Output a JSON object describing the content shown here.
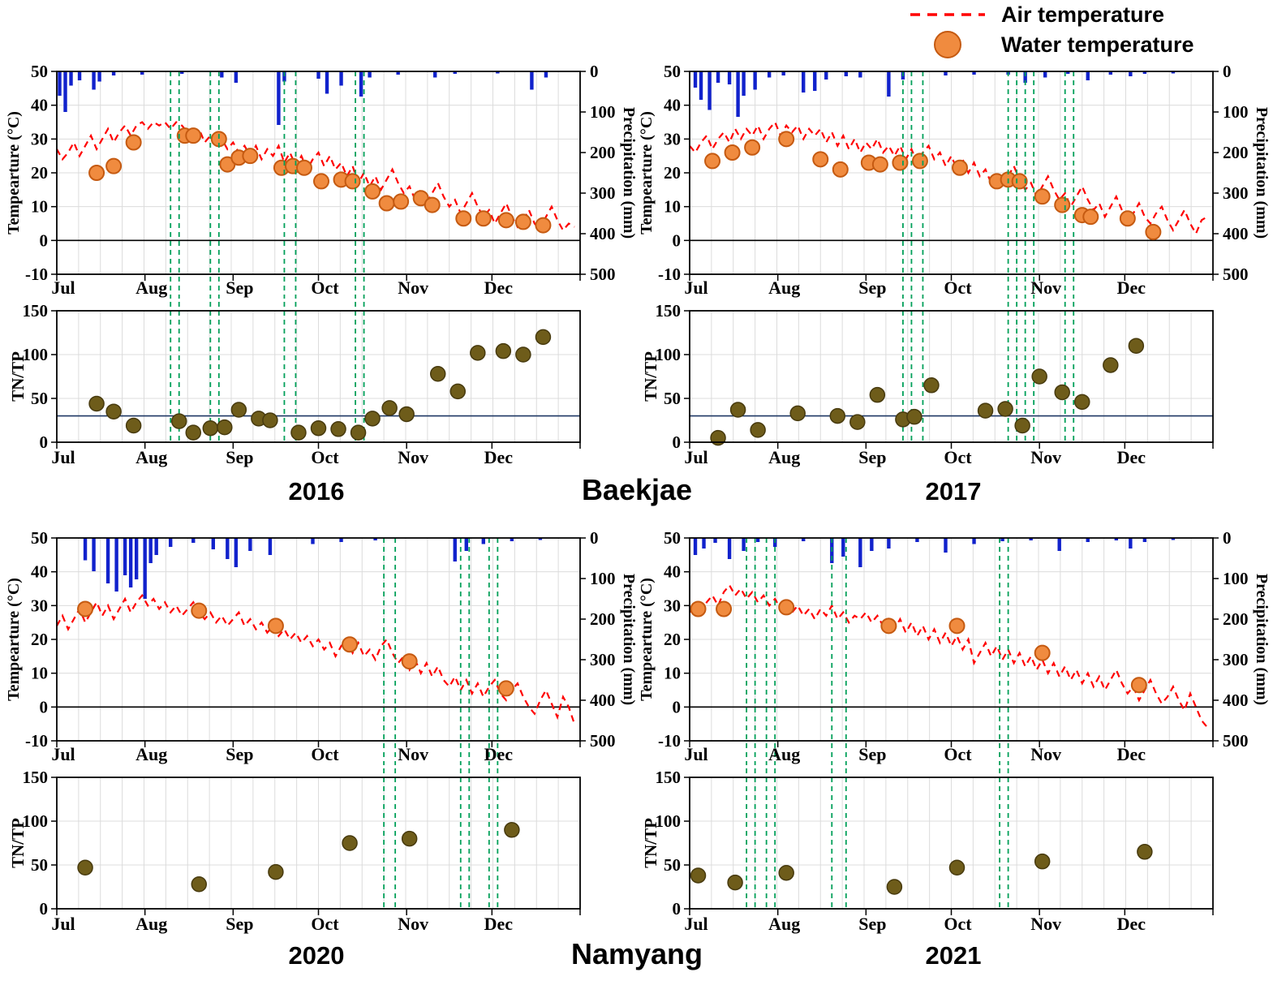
{
  "legend": {
    "air_label": "Air temperature",
    "water_label": "Water temperature"
  },
  "site_labels": {
    "top": "Baekjae",
    "bottom": "Namyang"
  },
  "colors": {
    "air": "#ff0000",
    "water_fill": "#f08b3f",
    "water_stroke": "#c55a11",
    "precip": "#1122cc",
    "event": "#00a05a",
    "tntp_fill": "#6e5c1a",
    "tntp_stroke": "#473a0e",
    "ref_line": "#1f3864",
    "grid": "#dcdcdc",
    "axis": "#000000"
  },
  "axes": {
    "temp_ylabel": "Tempearture (°C)",
    "precip_ylabel": "Precipitation (mm)",
    "tntp_ylabel": "TN/TP",
    "temp_ticks": [
      -10,
      0,
      10,
      20,
      30,
      40,
      50
    ],
    "precip_ticks": [
      0,
      100,
      200,
      300,
      400,
      500
    ],
    "tntp_ticks": [
      0,
      50,
      100,
      150
    ],
    "months": [
      "Jul",
      "Aug",
      "Sep",
      "Oct",
      "Nov",
      "Dec"
    ]
  },
  "chart_data": {
    "type": "multi-panel",
    "description": "Four site-year panels; each has a top subplot (daily air temperature dashed line, biweekly-ish water temperature dots, precipitation bars hanging from top on inverted right axis, green dashed event lines) and a bottom TN/TP scatter subplot.",
    "x_axis": {
      "range_days": [
        0,
        184
      ],
      "month_start_days": [
        0,
        31,
        62,
        92,
        123,
        153
      ]
    },
    "panels": [
      {
        "id": "baekjae-2016",
        "year": "2016",
        "temp": {
          "ylim": [
            -10,
            50
          ],
          "precip_ylim": [
            0,
            500
          ],
          "air_temperature": {
            "x_start_day": 0,
            "x_step_days": 2,
            "values_c": [
              27,
              24,
              26,
              29,
              25,
              28,
              31,
              27,
              30,
              33,
              29,
              32,
              34,
              31,
              34,
              35,
              33,
              35,
              34,
              35,
              33,
              35,
              34,
              32,
              30,
              33,
              29,
              31,
              28,
              30,
              27,
              29,
              26,
              28,
              25,
              28,
              24,
              27,
              25,
              28,
              23,
              26,
              22,
              25,
              21,
              24,
              26,
              22,
              25,
              21,
              23,
              19,
              22,
              17,
              20,
              16,
              19,
              15,
              18,
              21,
              17,
              14,
              16,
              12,
              15,
              11,
              14,
              17,
              13,
              10,
              12,
              8,
              11,
              14,
              10,
              7,
              9,
              5,
              8,
              11,
              7,
              4,
              6,
              9,
              5,
              3,
              7,
              10,
              6,
              3,
              5,
              4
            ]
          },
          "water_temperature": {
            "days": [
              14,
              20,
              27,
              45,
              48,
              57,
              60,
              64,
              68,
              79,
              83,
              87,
              93,
              100,
              104,
              111,
              116,
              121,
              128,
              132,
              143,
              150,
              158,
              164,
              171
            ],
            "values_c": [
              20,
              22,
              29,
              31,
              31,
              30,
              22.5,
              24.5,
              25,
              21.5,
              22,
              21.5,
              17.5,
              18,
              17.5,
              14.5,
              11,
              11.5,
              12.5,
              10.5,
              6.5,
              6.5,
              6,
              5.5,
              4.5
            ]
          },
          "precipitation": {
            "days": [
              1,
              3,
              5,
              8,
              13,
              15,
              20,
              30,
              44,
              58,
              63,
              78,
              80,
              92,
              95,
              100,
              107,
              110,
              120,
              133,
              140,
              155,
              167,
              172
            ],
            "values_mm": [
              60,
              100,
              35,
              22,
              45,
              25,
              10,
              8,
              6,
              15,
              28,
              132,
              25,
              18,
              55,
              35,
              62,
              15,
              8,
              15,
              6,
              5,
              45,
              15
            ]
          },
          "event_line_days": [
            40,
            43,
            54,
            57,
            80,
            84,
            105,
            108
          ]
        },
        "tntp": {
          "ylim": [
            0,
            150
          ],
          "days": [
            14,
            20,
            27,
            43,
            48,
            54,
            59,
            64,
            71,
            75,
            85,
            92,
            99,
            106,
            111,
            117,
            123,
            134,
            141,
            148,
            157,
            164,
            171
          ],
          "values": [
            44,
            35,
            19,
            24,
            11,
            16,
            17,
            37,
            27,
            25,
            11,
            16,
            15,
            11,
            27,
            39,
            32,
            78,
            58,
            102,
            104,
            100,
            120
          ],
          "ref_line": 30
        }
      },
      {
        "id": "baekjae-2017",
        "year": "2017",
        "temp": {
          "ylim": [
            -10,
            50
          ],
          "precip_ylim": [
            0,
            500
          ],
          "air_temperature": {
            "x_start_day": 0,
            "x_step_days": 2,
            "values_c": [
              28,
              26,
              29,
              31,
              27,
              30,
              32,
              29,
              33,
              30,
              33,
              31,
              34,
              30,
              33,
              35,
              31,
              34,
              32,
              34,
              30,
              33,
              31,
              33,
              29,
              32,
              28,
              31,
              27,
              30,
              26,
              29,
              27,
              30,
              26,
              28,
              25,
              28,
              24,
              27,
              23,
              26,
              28,
              24,
              26,
              22,
              25,
              21,
              24,
              20,
              23,
              19,
              21,
              17,
              20,
              16,
              19,
              22,
              18,
              15,
              17,
              13,
              16,
              19,
              15,
              12,
              14,
              10,
              13,
              16,
              12,
              9,
              11,
              7,
              10,
              13,
              9,
              6,
              8,
              11,
              7,
              5,
              8,
              10,
              6,
              3,
              6,
              9,
              5,
              2,
              6,
              7
            ]
          },
          "water_temperature": {
            "days": [
              8,
              15,
              22,
              34,
              46,
              53,
              63,
              67,
              74,
              81,
              95,
              108,
              112,
              116,
              124,
              131,
              138,
              141,
              154,
              163
            ],
            "values_c": [
              23.5,
              26,
              27.5,
              30,
              24,
              21,
              23,
              22.5,
              23,
              23.5,
              21.5,
              17.5,
              18,
              17.5,
              13,
              10.5,
              7.5,
              7,
              6.5,
              2.5
            ]
          },
          "precipitation": {
            "days": [
              2,
              4,
              7,
              10,
              14,
              17,
              19,
              23,
              28,
              33,
              40,
              44,
              48,
              55,
              60,
              70,
              75,
              90,
              100,
              112,
              118,
              125,
              133,
              140,
              148,
              155,
              160,
              170
            ],
            "values_mm": [
              40,
              70,
              95,
              28,
              32,
              112,
              60,
              45,
              15,
              10,
              52,
              48,
              20,
              12,
              15,
              62,
              20,
              10,
              8,
              8,
              28,
              15,
              6,
              22,
              8,
              12,
              6,
              5
            ]
          },
          "event_line_days": [
            75,
            78,
            82,
            112,
            115,
            118,
            121,
            132,
            135
          ]
        },
        "tntp": {
          "ylim": [
            0,
            150
          ],
          "days": [
            10,
            17,
            24,
            38,
            52,
            59,
            66,
            75,
            79,
            85,
            104,
            111,
            117,
            123,
            131,
            138,
            148,
            157
          ],
          "values": [
            5,
            37,
            14,
            33,
            30,
            23,
            54,
            26,
            29,
            65,
            36,
            38,
            19,
            75,
            57,
            46,
            88,
            110
          ],
          "ref_line": 30
        }
      },
      {
        "id": "namyang-2020",
        "year": "2020",
        "temp": {
          "ylim": [
            -10,
            50
          ],
          "precip_ylim": [
            0,
            500
          ],
          "air_temperature": {
            "x_start_day": 0,
            "x_step_days": 2,
            "values_c": [
              24,
              27,
              23,
              26,
              29,
              25,
              28,
              31,
              27,
              30,
              26,
              29,
              32,
              28,
              31,
              33,
              30,
              32,
              29,
              31,
              28,
              30,
              27,
              29,
              31,
              28,
              26,
              28,
              25,
              27,
              24,
              26,
              28,
              24,
              26,
              23,
              25,
              22,
              24,
              21,
              23,
              20,
              22,
              19,
              21,
              18,
              20,
              17,
              19,
              15,
              18,
              20,
              16,
              19,
              15,
              17,
              14,
              18,
              20,
              16,
              13,
              15,
              11,
              14,
              10,
              13,
              9,
              12,
              8,
              6,
              9,
              5,
              8,
              4,
              7,
              3,
              6,
              8,
              4,
              2,
              5,
              7,
              3,
              0,
              -2,
              2,
              5,
              1,
              -3,
              3,
              0,
              -5
            ]
          },
          "water_temperature": {
            "days": [
              10,
              50,
              77,
              103,
              124,
              158
            ],
            "values_c": [
              29,
              28.5,
              24,
              18.5,
              13.5,
              5.5
            ]
          },
          "precipitation": {
            "days": [
              10,
              13,
              18,
              21,
              24,
              26,
              28,
              31,
              33,
              35,
              40,
              48,
              55,
              60,
              63,
              68,
              75,
              90,
              100,
              112,
              140,
              144,
              150,
              160,
              170
            ],
            "values_mm": [
              55,
              82,
              112,
              132,
              92,
              122,
              102,
              150,
              62,
              42,
              22,
              12,
              28,
              52,
              72,
              32,
              42,
              15,
              10,
              6,
              58,
              32,
              15,
              8,
              5
            ]
          },
          "event_line_days": [
            115,
            119,
            142,
            145,
            152,
            155
          ]
        },
        "tntp": {
          "ylim": [
            0,
            150
          ],
          "days": [
            10,
            50,
            77,
            103,
            124,
            160
          ],
          "values": [
            47,
            28,
            42,
            75,
            80,
            90
          ],
          "ref_line": null
        }
      },
      {
        "id": "namyang-2021",
        "year": "2021",
        "temp": {
          "ylim": [
            -10,
            50
          ],
          "precip_ylim": [
            0,
            500
          ],
          "air_temperature": {
            "x_start_day": 0,
            "x_step_days": 2,
            "values_c": [
              28,
              30,
              27,
              31,
              33,
              30,
              34,
              36,
              33,
              35,
              32,
              34,
              31,
              33,
              30,
              32,
              29,
              31,
              28,
              30,
              27,
              29,
              26,
              29,
              27,
              30,
              26,
              28,
              25,
              27,
              26,
              28,
              25,
              27,
              24,
              26,
              23,
              26,
              22,
              25,
              21,
              24,
              20,
              23,
              19,
              22,
              18,
              21,
              17,
              20,
              13,
              16,
              19,
              15,
              18,
              14,
              17,
              13,
              16,
              12,
              15,
              11,
              14,
              10,
              13,
              9,
              12,
              8,
              11,
              7,
              10,
              6,
              9,
              5,
              8,
              11,
              7,
              4,
              6,
              2,
              5,
              8,
              4,
              1,
              3,
              6,
              2,
              -1,
              4,
              0,
              -4,
              -6
            ]
          },
          "water_temperature": {
            "days": [
              3,
              12,
              34,
              70,
              94,
              124,
              158
            ],
            "values_c": [
              29,
              29,
              29.5,
              24,
              24,
              16,
              6.5
            ]
          },
          "precipitation": {
            "days": [
              2,
              5,
              9,
              14,
              19,
              24,
              30,
              40,
              50,
              54,
              60,
              64,
              70,
              80,
              90,
              100,
              110,
              120,
              130,
              140,
              150,
              155,
              160,
              170
            ],
            "values_mm": [
              42,
              26,
              12,
              52,
              32,
              10,
              22,
              8,
              62,
              46,
              72,
              32,
              26,
              10,
              36,
              15,
              8,
              6,
              32,
              10,
              6,
              26,
              10,
              5
            ]
          },
          "event_line_days": [
            20,
            23,
            27,
            30,
            50,
            55,
            109,
            112
          ]
        },
        "tntp": {
          "ylim": [
            0,
            150
          ],
          "days": [
            3,
            16,
            34,
            72,
            94,
            124,
            160
          ],
          "values": [
            38,
            30,
            41,
            25,
            47,
            54,
            65
          ],
          "ref_line": null
        }
      }
    ]
  }
}
